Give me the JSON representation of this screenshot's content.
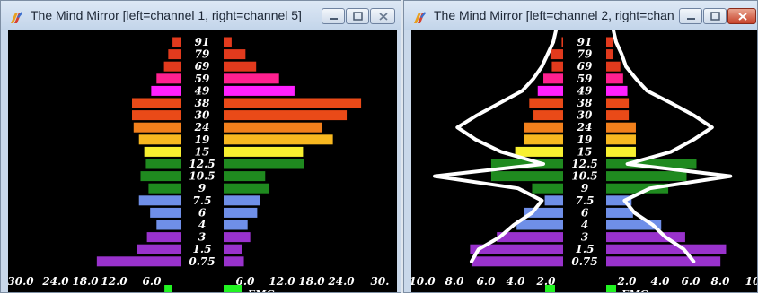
{
  "windows": [
    {
      "title": "The Mind Mirror [left=channel 1, right=channel 5]",
      "scale_labels": [
        "30.0",
        "24.0",
        "18.0",
        "12.0",
        "6.0",
        "6.0",
        "12.0",
        "18.0",
        "24.0",
        "30."
      ],
      "emg_label": "EMG",
      "bands": [
        "91",
        "79",
        "69",
        "59",
        "49",
        "38",
        "30",
        "24",
        "19",
        "15",
        "12.5",
        "10.5",
        "9",
        "7.5",
        "6",
        "4",
        "3",
        "1.5",
        "0.75"
      ],
      "left_values": [
        1.5,
        2.3,
        3.1,
        4.5,
        5.5,
        9.1,
        9.1,
        8.8,
        7.8,
        6.8,
        6.5,
        7.5,
        6.0,
        7.8,
        5.7,
        4.5,
        6.3,
        8.1,
        15.7
      ],
      "right_values": [
        1.5,
        4.1,
        6.1,
        10.4,
        13.3,
        25.8,
        23.1,
        18.5,
        20.5,
        14.9,
        15.0,
        7.8,
        8.6,
        6.8,
        6.3,
        4.5,
        5.0,
        3.5,
        3.8
      ],
      "emg_left": 1.5,
      "emg_right": 3.5
    },
    {
      "title": "The Mind Mirror [left=channel 2, right=chan...",
      "scale_labels": [
        "10.0",
        "8.0",
        "6.0",
        "4.0",
        "2.0",
        "2.0",
        "4.0",
        "6.0",
        "8.0",
        "10"
      ],
      "emg_label": "EMG",
      "bands": [
        "91",
        "79",
        "69",
        "59",
        "49",
        "38",
        "30",
        "24",
        "19",
        "15",
        "12.5",
        "10.5",
        "9",
        "7.5",
        "6",
        "4",
        "3",
        "1.5",
        "0.75"
      ],
      "left_values": [
        0.1,
        0.9,
        0.8,
        1.4,
        1.8,
        2.4,
        2.1,
        2.8,
        2.8,
        3.4,
        5.1,
        5.1,
        2.2,
        1.3,
        2.8,
        3.3,
        4.7,
        6.6,
        6.5
      ],
      "right_values": [
        0.5,
        0.5,
        1.0,
        1.2,
        1.5,
        1.6,
        1.6,
        2.1,
        2.1,
        2.1,
        6.4,
        5.7,
        4.4,
        1.8,
        1.9,
        3.9,
        5.6,
        8.5,
        8.1
      ],
      "envelope_left": [
        0.7,
        1.1,
        1.5,
        2.1,
        2.9,
        4.5,
        6.1,
        7.5,
        6.2,
        4.4,
        1.4,
        9.1,
        3.2,
        1.5,
        2.2,
        3.5,
        4.5,
        6.0,
        6.5
      ],
      "envelope_right": [
        0.7,
        1.1,
        1.4,
        2.1,
        2.9,
        4.6,
        6.2,
        7.5,
        6.2,
        4.6,
        1.5,
        8.8,
        3.1,
        1.3,
        2.0,
        3.3,
        4.2,
        5.5,
        6.2
      ],
      "emg_left": 0.7,
      "emg_right": 0.7
    }
  ],
  "colors": {
    "bands": [
      "#e23a1d",
      "#e23a1d",
      "#e23a1d",
      "#ff2090",
      "#ff20ff",
      "#ea4a18",
      "#ea4a18",
      "#f2801c",
      "#f8b820",
      "#f8f030",
      "#1f8a1f",
      "#1f8a1f",
      "#1f8a1f",
      "#6f8fe8",
      "#6f8fe8",
      "#6f8fe8",
      "#9932cc",
      "#9932cc",
      "#9932cc"
    ],
    "emg": "#22f422",
    "envelope": "#ffffff",
    "text": "#ffffff"
  }
}
